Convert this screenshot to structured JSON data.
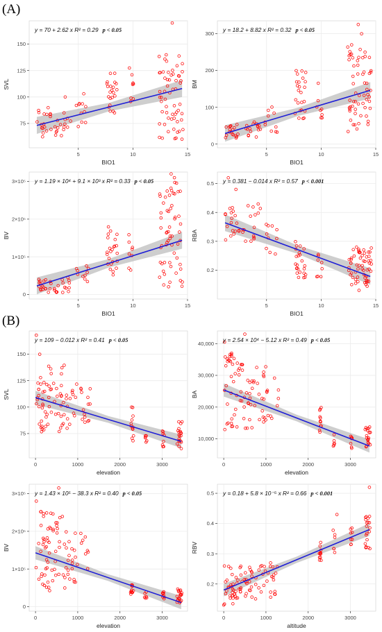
{
  "section_labels": [
    "(A)",
    "(B)"
  ],
  "colors": {
    "points": "#ff0000",
    "fit_line": "#1f1fd6",
    "ci_band": "#bdbdbd",
    "grid": "#ebebeb",
    "axis": "#333333"
  },
  "chart_data": [
    {
      "type": "scatter",
      "section": "(A)",
      "xlabel": "BIO1",
      "ylabel": "SVL",
      "xlim": [
        0.5,
        15
      ],
      "ylim": [
        52,
        172
      ],
      "xticks": [
        {
          "v": 5,
          "label": "5"
        },
        {
          "v": 10,
          "label": "10"
        },
        {
          "v": 15,
          "label": "15"
        }
      ],
      "yticks": [
        {
          "v": 75,
          "label": "75"
        },
        {
          "v": 100,
          "label": "100"
        },
        {
          "v": 125,
          "label": "125"
        },
        {
          "v": 150,
          "label": "150"
        }
      ],
      "equation": "y = 70 + 2.62 x   R² = 0.29",
      "pvalue": "p < 0.05",
      "fit": {
        "intercept": 70,
        "slope": 2.62,
        "x_range": [
          1.2,
          14.5
        ],
        "band": 5
      },
      "points_spec": [
        {
          "x": [
            1.2,
            2.5
          ],
          "y": [
            62,
            90
          ],
          "n": 18,
          "seed": 1
        },
        {
          "x": [
            2.8,
            4.5
          ],
          "y": [
            60,
            85
          ],
          "n": 16,
          "seed": 2
        },
        {
          "x": [
            4.8,
            6
          ],
          "y": [
            65,
            95
          ],
          "n": 10,
          "seed": 3
        },
        {
          "x": [
            7.6,
            8.6
          ],
          "y": [
            85,
            125
          ],
          "n": 22,
          "seed": 4
        },
        {
          "x": [
            9.6,
            10.1
          ],
          "y": [
            95,
            128
          ],
          "n": 8,
          "seed": 5
        },
        {
          "x": [
            12.4,
            14.6
          ],
          "y": [
            60,
            140
          ],
          "n": 60,
          "seed": 6
        }
      ],
      "outliers": [
        [
          13.6,
          170
        ],
        [
          3.8,
          100
        ],
        [
          5.5,
          103
        ]
      ]
    },
    {
      "type": "scatter",
      "section": "(A)",
      "xlabel": "BIO1",
      "ylabel": "BM",
      "xlim": [
        0.5,
        15
      ],
      "ylim": [
        -10,
        335
      ],
      "xticks": [
        {
          "v": 5,
          "label": "5"
        },
        {
          "v": 10,
          "label": "10"
        },
        {
          "v": 15,
          "label": "15"
        }
      ],
      "yticks": [
        {
          "v": 0,
          "label": "0"
        },
        {
          "v": 100,
          "label": "100"
        },
        {
          "v": 200,
          "label": "200"
        },
        {
          "v": 300,
          "label": "300"
        }
      ],
      "equation": "y = 18.2 + 8.82 x   R² = 0.32",
      "pvalue": "p < 0.05",
      "fit": {
        "intercept": 18.2,
        "slope": 8.82,
        "x_range": [
          1.2,
          14.5
        ],
        "band": 14
      },
      "points_spec": [
        {
          "x": [
            1.2,
            2.5
          ],
          "y": [
            15,
            55
          ],
          "n": 18,
          "seed": 11
        },
        {
          "x": [
            2.8,
            4.5
          ],
          "y": [
            15,
            60
          ],
          "n": 16,
          "seed": 12
        },
        {
          "x": [
            4.8,
            6
          ],
          "y": [
            25,
            110
          ],
          "n": 10,
          "seed": 13
        },
        {
          "x": [
            7.6,
            8.6
          ],
          "y": [
            60,
            200
          ],
          "n": 24,
          "seed": 14
        },
        {
          "x": [
            9.6,
            10.1
          ],
          "y": [
            70,
            170
          ],
          "n": 8,
          "seed": 15
        },
        {
          "x": [
            12.4,
            14.6
          ],
          "y": [
            30,
            280
          ],
          "n": 60,
          "seed": 16
        }
      ],
      "outliers": [
        [
          13.4,
          325
        ],
        [
          13.7,
          300
        ]
      ]
    },
    {
      "type": "scatter",
      "section": "(A)",
      "xlabel": "BIO1",
      "ylabel": "BV",
      "xlim": [
        0.5,
        15
      ],
      "ylim": [
        -1.2,
        32.5
      ],
      "xticks": [
        {
          "v": 5,
          "label": "5"
        },
        {
          "v": 10,
          "label": "10"
        },
        {
          "v": 15,
          "label": "15"
        }
      ],
      "yticks": [
        {
          "v": 0,
          "label": "0"
        },
        {
          "v": 10,
          "label": "1×10⁵"
        },
        {
          "v": 20,
          "label": "2×10⁵"
        },
        {
          "v": 30,
          "label": "3×10⁵"
        }
      ],
      "equation": "y = 1.19 × 10⁴ + 9.1 × 10³ x   R² = 0.33",
      "pvalue": "p < 0.05",
      "fit": {
        "intercept": 1.19,
        "slope": 0.91,
        "x_range": [
          1.2,
          14.5
        ],
        "band": 1.4
      },
      "points_spec": [
        {
          "x": [
            1.2,
            2.5
          ],
          "y": [
            0.5,
            4
          ],
          "n": 18,
          "seed": 21
        },
        {
          "x": [
            2.8,
            4.5
          ],
          "y": [
            0.5,
            4.5
          ],
          "n": 16,
          "seed": 22
        },
        {
          "x": [
            4.8,
            6
          ],
          "y": [
            1,
            8
          ],
          "n": 10,
          "seed": 23
        },
        {
          "x": [
            7.6,
            8.6
          ],
          "y": [
            5,
            20
          ],
          "n": 24,
          "seed": 24
        },
        {
          "x": [
            9.6,
            10.1
          ],
          "y": [
            6,
            16
          ],
          "n": 8,
          "seed": 25
        },
        {
          "x": [
            12.4,
            14.6
          ],
          "y": [
            2,
            30
          ],
          "n": 60,
          "seed": 26
        }
      ],
      "outliers": [
        [
          13.5,
          32
        ],
        [
          13.8,
          31
        ]
      ]
    },
    {
      "type": "scatter",
      "section": "(A)",
      "xlabel": "BIO1",
      "ylabel": "RBA",
      "xlim": [
        0.5,
        15
      ],
      "ylim": [
        0.1,
        0.54
      ],
      "xticks": [
        {
          "v": 5,
          "label": "5"
        },
        {
          "v": 10,
          "label": "10"
        },
        {
          "v": 15,
          "label": "15"
        }
      ],
      "yticks": [
        {
          "v": 0.2,
          "label": "0.2"
        },
        {
          "v": 0.3,
          "label": "0.3"
        },
        {
          "v": 0.4,
          "label": "0.4"
        },
        {
          "v": 0.5,
          "label": "0.5"
        }
      ],
      "equation": "y = 0.381 − 0.014 x   R² = 0.57",
      "pvalue": "p < 0.001",
      "fit": {
        "intercept": 0.381,
        "slope": -0.014,
        "x_range": [
          1.2,
          14.5
        ],
        "band": 0.018
      },
      "points_spec": [
        {
          "x": [
            1.2,
            2.5
          ],
          "y": [
            0.3,
            0.42
          ],
          "n": 18,
          "seed": 31
        },
        {
          "x": [
            2.8,
            4.5
          ],
          "y": [
            0.3,
            0.43
          ],
          "n": 16,
          "seed": 32
        },
        {
          "x": [
            4.8,
            6
          ],
          "y": [
            0.25,
            0.38
          ],
          "n": 10,
          "seed": 33
        },
        {
          "x": [
            7.6,
            8.6
          ],
          "y": [
            0.17,
            0.3
          ],
          "n": 24,
          "seed": 34
        },
        {
          "x": [
            9.6,
            10.1
          ],
          "y": [
            0.17,
            0.26
          ],
          "n": 8,
          "seed": 35
        },
        {
          "x": [
            12.4,
            14.6
          ],
          "y": [
            0.13,
            0.28
          ],
          "n": 60,
          "seed": 36
        }
      ],
      "outliers": [
        [
          1.5,
          0.52
        ],
        [
          2.2,
          0.48
        ]
      ]
    },
    {
      "type": "scatter",
      "section": "(B)",
      "xlabel": "elevation",
      "ylabel": "SVL",
      "xlim": [
        -150,
        3600
      ],
      "ylim": [
        52,
        172
      ],
      "xticks": [
        {
          "v": 0,
          "label": "0"
        },
        {
          "v": 1000,
          "label": "1000"
        },
        {
          "v": 2000,
          "label": "2000"
        },
        {
          "v": 3000,
          "label": "3000"
        }
      ],
      "yticks": [
        {
          "v": 75,
          "label": "75"
        },
        {
          "v": 100,
          "label": "100"
        },
        {
          "v": 125,
          "label": "125"
        },
        {
          "v": 150,
          "label": "150"
        }
      ],
      "equation": "y = 109 − 0.012 x   R² = 0.41",
      "pvalue": "p < 0.05",
      "fit": {
        "intercept": 109,
        "slope": -0.012,
        "x_range": [
          0,
          3450
        ],
        "band": 4
      },
      "points_spec": [
        {
          "x": [
            0,
            300
          ],
          "y": [
            75,
            128
          ],
          "n": 30,
          "seed": 41
        },
        {
          "x": [
            300,
            700
          ],
          "y": [
            72,
            140
          ],
          "n": 30,
          "seed": 42
        },
        {
          "x": [
            700,
            1300
          ],
          "y": [
            80,
            125
          ],
          "n": 28,
          "seed": 43
        },
        {
          "x": [
            2250,
            2320
          ],
          "y": [
            68,
            104
          ],
          "n": 12,
          "seed": 44
        },
        {
          "x": [
            2580,
            2640
          ],
          "y": [
            65,
            82
          ],
          "n": 6,
          "seed": 45
        },
        {
          "x": [
            3000,
            3050
          ],
          "y": [
            62,
            78
          ],
          "n": 8,
          "seed": 46
        },
        {
          "x": [
            3350,
            3470
          ],
          "y": [
            58,
            88
          ],
          "n": 20,
          "seed": 47
        }
      ],
      "outliers": [
        [
          20,
          168
        ],
        [
          100,
          150
        ]
      ]
    },
    {
      "type": "scatter",
      "section": "(B)",
      "xlabel": "elevation",
      "ylabel": "BA",
      "xlim": [
        -150,
        3600
      ],
      "ylim": [
        4000,
        44000
      ],
      "xticks": [
        {
          "v": 0,
          "label": "0"
        },
        {
          "v": 1000,
          "label": "1000"
        },
        {
          "v": 2000,
          "label": "2000"
        },
        {
          "v": 3000,
          "label": "3000"
        }
      ],
      "yticks": [
        {
          "v": 10000,
          "label": "10,000"
        },
        {
          "v": 20000,
          "label": "20,000"
        },
        {
          "v": 30000,
          "label": "30,000"
        },
        {
          "v": 40000,
          "label": "40,000"
        }
      ],
      "equation": "y = 2.54 × 10⁴ − 5.12 x   R² = 0.49",
      "pvalue": "p < 0.05",
      "fit": {
        "intercept": 25400,
        "slope": -5.12,
        "x_range": [
          0,
          3450
        ],
        "band": 1300
      },
      "points_spec": [
        {
          "x": [
            0,
            300
          ],
          "y": [
            12000,
            37000
          ],
          "n": 30,
          "seed": 51
        },
        {
          "x": [
            300,
            700
          ],
          "y": [
            13000,
            34000
          ],
          "n": 30,
          "seed": 52
        },
        {
          "x": [
            700,
            1300
          ],
          "y": [
            15000,
            33000
          ],
          "n": 28,
          "seed": 53
        },
        {
          "x": [
            2250,
            2320
          ],
          "y": [
            8000,
            20000
          ],
          "n": 12,
          "seed": 54
        },
        {
          "x": [
            2580,
            2640
          ],
          "y": [
            7000,
            12000
          ],
          "n": 6,
          "seed": 55
        },
        {
          "x": [
            3000,
            3050
          ],
          "y": [
            7000,
            11000
          ],
          "n": 8,
          "seed": 56
        },
        {
          "x": [
            3350,
            3470
          ],
          "y": [
            6000,
            14000
          ],
          "n": 20,
          "seed": 57
        }
      ],
      "outliers": [
        [
          500,
          43000
        ],
        [
          20,
          40500
        ]
      ]
    },
    {
      "type": "scatter",
      "section": "(B)",
      "xlabel": "elevation",
      "ylabel": "BV",
      "xlim": [
        -150,
        3600
      ],
      "ylim": [
        -1.2,
        32.5
      ],
      "xticks": [
        {
          "v": 0,
          "label": "0"
        },
        {
          "v": 1000,
          "label": "1000"
        },
        {
          "v": 2000,
          "label": "2000"
        },
        {
          "v": 3000,
          "label": "3000"
        }
      ],
      "yticks": [
        {
          "v": 0,
          "label": "0"
        },
        {
          "v": 10,
          "label": "1×10⁵"
        },
        {
          "v": 20,
          "label": "2×10⁵"
        },
        {
          "v": 30,
          "label": "3×10⁵"
        }
      ],
      "equation": "y = 1.43 × 10⁵ − 38.3 x   R² = 0.40",
      "pvalue": "p < 0.05",
      "fit": {
        "intercept": 14.3,
        "slope": -0.00383,
        "x_range": [
          0,
          3450
        ],
        "band": 1.1
      },
      "points_spec": [
        {
          "x": [
            0,
            300
          ],
          "y": [
            4,
            26
          ],
          "n": 30,
          "seed": 61
        },
        {
          "x": [
            300,
            700
          ],
          "y": [
            4,
            25
          ],
          "n": 30,
          "seed": 62
        },
        {
          "x": [
            700,
            1300
          ],
          "y": [
            5,
            20
          ],
          "n": 28,
          "seed": 63
        },
        {
          "x": [
            2250,
            2320
          ],
          "y": [
            2.5,
            6
          ],
          "n": 12,
          "seed": 64
        },
        {
          "x": [
            2580,
            2640
          ],
          "y": [
            2,
            4
          ],
          "n": 6,
          "seed": 65
        },
        {
          "x": [
            3000,
            3050
          ],
          "y": [
            2,
            4
          ],
          "n": 8,
          "seed": 66
        },
        {
          "x": [
            3350,
            3470
          ],
          "y": [
            1,
            5
          ],
          "n": 20,
          "seed": 67
        }
      ],
      "outliers": [
        [
          550,
          31.5
        ],
        [
          20,
          28
        ]
      ]
    },
    {
      "type": "scatter",
      "section": "(B)",
      "xlabel": "altitude",
      "ylabel": "RBV",
      "xlim": [
        -150,
        3600
      ],
      "ylim": [
        0.11,
        0.53
      ],
      "xticks": [
        {
          "v": 0,
          "label": "0"
        },
        {
          "v": 1000,
          "label": "1000"
        },
        {
          "v": 2000,
          "label": "2000"
        },
        {
          "v": 3000,
          "label": "3000"
        }
      ],
      "yticks": [
        {
          "v": 0.2,
          "label": "0.2"
        },
        {
          "v": 0.3,
          "label": "0.3"
        },
        {
          "v": 0.4,
          "label": "0.4"
        },
        {
          "v": 0.5,
          "label": "0.5"
        }
      ],
      "equation": "y = 0.18 + 5.8 × 10⁻⁵ x   R² = 0.66",
      "pvalue": "p < 0.001",
      "fit": {
        "intercept": 0.18,
        "slope": 5.8e-05,
        "x_range": [
          0,
          3450
        ],
        "band": 0.013
      },
      "points_spec": [
        {
          "x": [
            0,
            300
          ],
          "y": [
            0.13,
            0.26
          ],
          "n": 30,
          "seed": 71
        },
        {
          "x": [
            300,
            700
          ],
          "y": [
            0.15,
            0.26
          ],
          "n": 30,
          "seed": 72
        },
        {
          "x": [
            700,
            1300
          ],
          "y": [
            0.15,
            0.27
          ],
          "n": 28,
          "seed": 73
        },
        {
          "x": [
            2250,
            2320
          ],
          "y": [
            0.27,
            0.35
          ],
          "n": 12,
          "seed": 74
        },
        {
          "x": [
            2580,
            2640
          ],
          "y": [
            0.3,
            0.38
          ],
          "n": 6,
          "seed": 75
        },
        {
          "x": [
            3000,
            3050
          ],
          "y": [
            0.33,
            0.4
          ],
          "n": 8,
          "seed": 76
        },
        {
          "x": [
            3350,
            3470
          ],
          "y": [
            0.3,
            0.45
          ],
          "n": 20,
          "seed": 77
        }
      ],
      "outliers": [
        [
          3450,
          0.52
        ],
        [
          2680,
          0.43
        ]
      ]
    }
  ]
}
